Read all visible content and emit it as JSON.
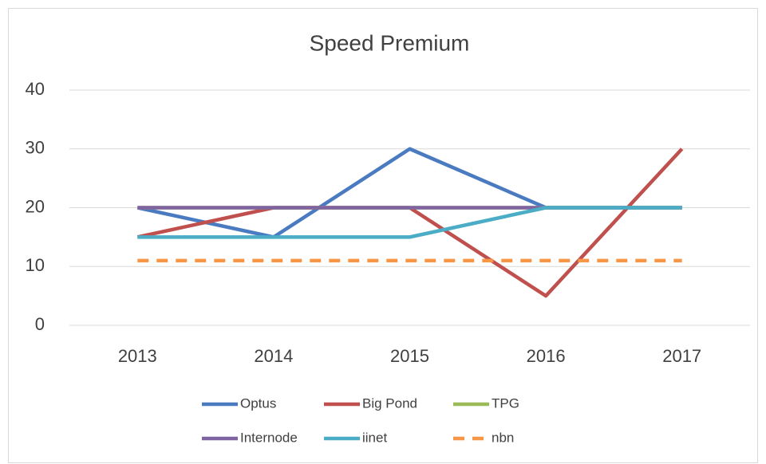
{
  "chart_data": {
    "type": "line",
    "title": "Speed Premium",
    "categories": [
      "2013",
      "2014",
      "2015",
      "2016",
      "2017"
    ],
    "series": [
      {
        "name": "Optus",
        "color": "#4a7bc1",
        "values": [
          20,
          15,
          30,
          20,
          20
        ]
      },
      {
        "name": "Big Pond",
        "color": "#c0504d",
        "values": [
          15,
          20,
          20,
          5,
          30
        ]
      },
      {
        "name": "TPG",
        "color": "#9bbb59",
        "values": [
          20,
          20,
          20,
          20,
          20
        ]
      },
      {
        "name": "Internode",
        "color": "#8064a2",
        "values": [
          20,
          20,
          20,
          20,
          20
        ]
      },
      {
        "name": "iinet",
        "color": "#4bacc6",
        "values": [
          15,
          15,
          15,
          20,
          20
        ]
      },
      {
        "name": "nbn",
        "color": "#f79646",
        "values": [
          11,
          11,
          11,
          11,
          11
        ],
        "dashed": true
      }
    ],
    "ylim": [
      0,
      40
    ],
    "yticks": [
      0,
      10,
      20,
      30,
      40
    ],
    "grid": true,
    "legend": "bottom"
  }
}
